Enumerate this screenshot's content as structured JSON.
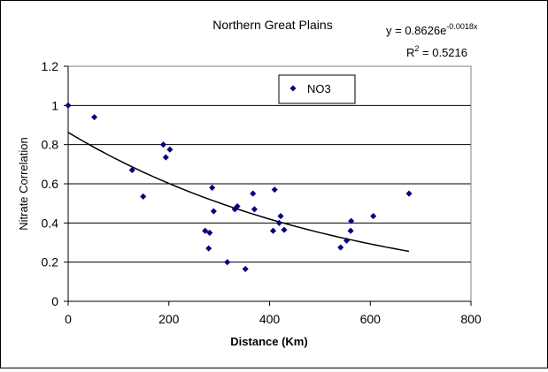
{
  "chart_data": {
    "type": "scatter",
    "title": "Northern Great Plains",
    "xlabel": "Distance (Km)",
    "ylabel": "Nitrate Correlation",
    "xlim": [
      0,
      800
    ],
    "ylim": [
      0,
      1.2
    ],
    "x_ticks": [
      "0",
      "200",
      "400",
      "600",
      "800"
    ],
    "y_ticks": [
      "0",
      "0.2",
      "0.4",
      "0.6",
      "0.8",
      "1",
      "1.2"
    ],
    "grid": "horizontal",
    "legend_position": "top-right",
    "series": [
      {
        "name": "NO3",
        "color": "#000080",
        "marker": "diamond",
        "points": [
          [
            0,
            1.0
          ],
          [
            52,
            0.94
          ],
          [
            127,
            0.67
          ],
          [
            149,
            0.535
          ],
          [
            189,
            0.8
          ],
          [
            194,
            0.735
          ],
          [
            202,
            0.775
          ],
          [
            272,
            0.36
          ],
          [
            279,
            0.27
          ],
          [
            281,
            0.35
          ],
          [
            286,
            0.58
          ],
          [
            289,
            0.46
          ],
          [
            316,
            0.2
          ],
          [
            331,
            0.47
          ],
          [
            336,
            0.485
          ],
          [
            352,
            0.165
          ],
          [
            367,
            0.55
          ],
          [
            370,
            0.47
          ],
          [
            407,
            0.36
          ],
          [
            410,
            0.57
          ],
          [
            419,
            0.4
          ],
          [
            422,
            0.435
          ],
          [
            429,
            0.365
          ],
          [
            541,
            0.275
          ],
          [
            553,
            0.31
          ],
          [
            561,
            0.36
          ],
          [
            562,
            0.41
          ],
          [
            606,
            0.435
          ],
          [
            677,
            0.55
          ]
        ]
      }
    ],
    "trendline": {
      "type": "exponential",
      "a": 0.8626,
      "b": -0.0018,
      "x_range": [
        0,
        677
      ],
      "color": "#000000"
    },
    "equation": {
      "prefix": "y = 0.8626e",
      "exponent": "-0.0018x"
    },
    "r_squared": {
      "label": "R",
      "power": "2",
      "value_text": " = 0.5216"
    }
  }
}
